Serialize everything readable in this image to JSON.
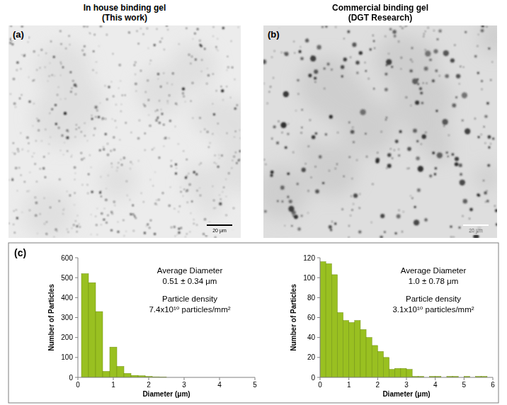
{
  "images": [
    {
      "letter": "(a)",
      "title": [
        "In house binding gel",
        "(This work)"
      ],
      "scale_bar": "20 μm"
    },
    {
      "letter": "(b)",
      "title": [
        "Commercial binding gel",
        "(DGT Research)"
      ],
      "scale_bar": "20 μm"
    }
  ],
  "panel_letter": "(c)",
  "chart_data": [
    {
      "type": "histogram",
      "bins": [
        0.1,
        0.3,
        0.5,
        0.7,
        0.9,
        1.1,
        1.3,
        1.5,
        1.7,
        1.9,
        2.1,
        2.3,
        2.5
      ],
      "values": [
        520,
        475,
        330,
        30,
        152,
        55,
        20,
        10,
        8,
        5,
        3,
        2
      ],
      "color": "#99c021",
      "xlim": [
        0,
        5
      ],
      "xticks": [
        0,
        1,
        2,
        3,
        4,
        5
      ],
      "ylim": [
        0,
        600
      ],
      "yticks": [
        0,
        100,
        200,
        300,
        400,
        500,
        600
      ],
      "x_label": "Diameter (μm)",
      "y_label": "Number of Particles",
      "annotations": [
        "Average Diameter",
        "0.51 ± 0.34 μm",
        "Particle density",
        "7.4x10¹⁰ particles/mm²"
      ]
    },
    {
      "type": "histogram",
      "bins": [
        0,
        0.2,
        0.4,
        0.6,
        0.8,
        1.0,
        1.2,
        1.4,
        1.6,
        1.8,
        2.0,
        2.2,
        2.4,
        2.6,
        2.8,
        3.0,
        3.2,
        3.4,
        3.6,
        3.8,
        4.0,
        4.2,
        4.4,
        4.6,
        4.8,
        5.0,
        5.2,
        5.4,
        5.6,
        5.8,
        6.0
      ],
      "values": [
        116,
        114,
        103,
        65,
        57,
        55,
        57,
        48,
        40,
        32,
        26,
        20,
        8,
        9,
        9,
        8,
        1,
        1,
        0,
        1,
        1,
        0,
        1,
        1,
        0,
        1,
        0,
        1,
        1,
        0
      ],
      "color": "#99c021",
      "xlim": [
        0,
        6
      ],
      "xticks": [
        0,
        1,
        2,
        3,
        4,
        5,
        6
      ],
      "ylim": [
        0,
        120
      ],
      "yticks": [
        0,
        20,
        40,
        60,
        80,
        100,
        120
      ],
      "x_label": "Diameter (μm)",
      "y_label": "Number of Particles",
      "annotations": [
        "Average Diameter",
        "1.0 ± 0.78 μm",
        "Particle density",
        "3.1x10¹⁰ particles/mm²"
      ]
    }
  ]
}
